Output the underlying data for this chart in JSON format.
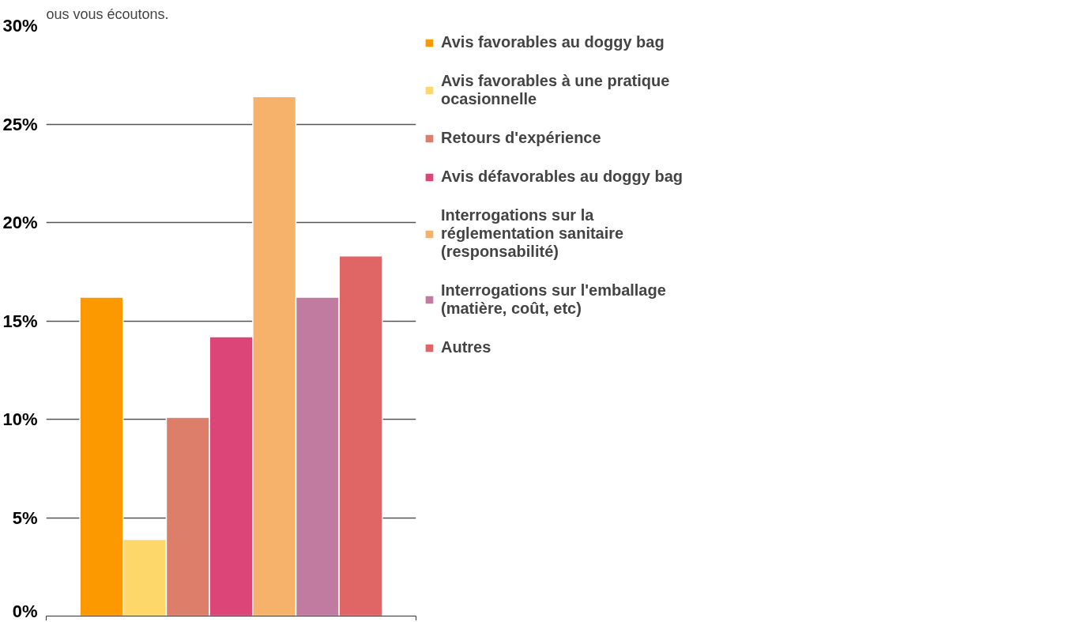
{
  "chart_data": {
    "type": "bar",
    "title": "ous vous écoutons.",
    "categories": [
      null
    ],
    "series": [
      {
        "name": "Avis favorables au doggy bag",
        "color": "#fc9900",
        "values": [
          16.2
        ]
      },
      {
        "name": "Avis favorables à une pratique ocasionnelle",
        "color": "#fdd76a",
        "values": [
          3.9
        ]
      },
      {
        "name": "Retours d'expérience",
        "color": "#dd7e6b",
        "values": [
          10.1
        ]
      },
      {
        "name": "Avis défavorables au doggy bag",
        "color": "#dc4577",
        "values": [
          14.2
        ]
      },
      {
        "name": "Interrogations sur la réglementation sanitaire (responsabilité)",
        "color": "#f6b26b",
        "values": [
          26.4
        ]
      },
      {
        "name": "Interrogations sur l'emballage (matière, coût, etc)",
        "color": "#c27ba0",
        "values": [
          16.2
        ]
      },
      {
        "name": "Autres",
        "color": "#e06666",
        "values": [
          18.3
        ]
      }
    ],
    "ylim": [
      0,
      30
    ],
    "yticks": [
      {
        "value": 0,
        "label": "0%"
      },
      {
        "value": 5,
        "label": "5%"
      },
      {
        "value": 10,
        "label": "10%"
      },
      {
        "value": 15,
        "label": "15%"
      },
      {
        "value": 20,
        "label": "20%"
      },
      {
        "value": 25,
        "label": "25%"
      },
      {
        "value": 30,
        "label": "30%"
      }
    ],
    "grid": "y",
    "legend": "right"
  }
}
